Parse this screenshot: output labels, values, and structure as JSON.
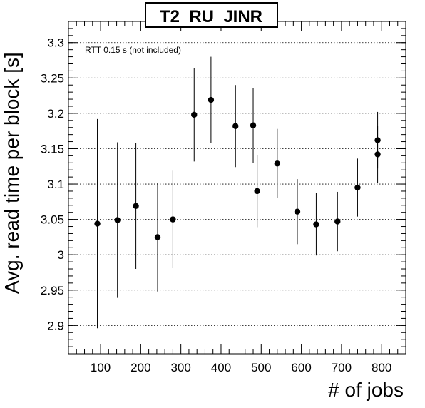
{
  "chart_data": {
    "type": "scatter",
    "title": "T2_RU_JINR",
    "xlabel": "# of jobs",
    "ylabel": "Avg. read time per block [s]",
    "annotation": "RTT 0.15 s (not included)",
    "xlim": [
      20,
      860
    ],
    "ylim": [
      2.86,
      3.33
    ],
    "x_ticks": [
      100,
      200,
      300,
      400,
      500,
      600,
      700,
      800
    ],
    "y_ticks": [
      2.9,
      2.95,
      3.0,
      3.05,
      3.1,
      3.15,
      3.2,
      3.25,
      3.3
    ],
    "y_tick_labels": [
      "2.9",
      "2.95",
      "3",
      "3.05",
      "3.1",
      "3.15",
      "3.2",
      "3.25",
      "3.3"
    ],
    "grid": {
      "x": false,
      "y": true
    },
    "legend": "none",
    "marker_color": "#000000",
    "points": [
      {
        "x": 92,
        "y": 3.044,
        "yerr": 0.148
      },
      {
        "x": 142,
        "y": 3.049,
        "yerr": 0.11
      },
      {
        "x": 188,
        "y": 3.069,
        "yerr": 0.089
      },
      {
        "x": 242,
        "y": 3.025,
        "yerr": 0.077
      },
      {
        "x": 280,
        "y": 3.05,
        "yerr": 0.069
      },
      {
        "x": 333,
        "y": 3.198,
        "yerr": 0.066
      },
      {
        "x": 375,
        "y": 3.219,
        "yerr": 0.061
      },
      {
        "x": 436,
        "y": 3.182,
        "yerr": 0.058
      },
      {
        "x": 480,
        "y": 3.183,
        "yerr": 0.053
      },
      {
        "x": 490,
        "y": 3.09,
        "yerr": 0.051
      },
      {
        "x": 540,
        "y": 3.129,
        "yerr": 0.049
      },
      {
        "x": 590,
        "y": 3.061,
        "yerr": 0.046
      },
      {
        "x": 637,
        "y": 3.043,
        "yerr": 0.044
      },
      {
        "x": 690,
        "y": 3.047,
        "yerr": 0.042
      },
      {
        "x": 740,
        "y": 3.095,
        "yerr": 0.041
      },
      {
        "x": 790,
        "y": 3.162,
        "yerr": 0.04
      },
      {
        "x": 790,
        "y": 3.142,
        "yerr": 0.04
      }
    ]
  }
}
